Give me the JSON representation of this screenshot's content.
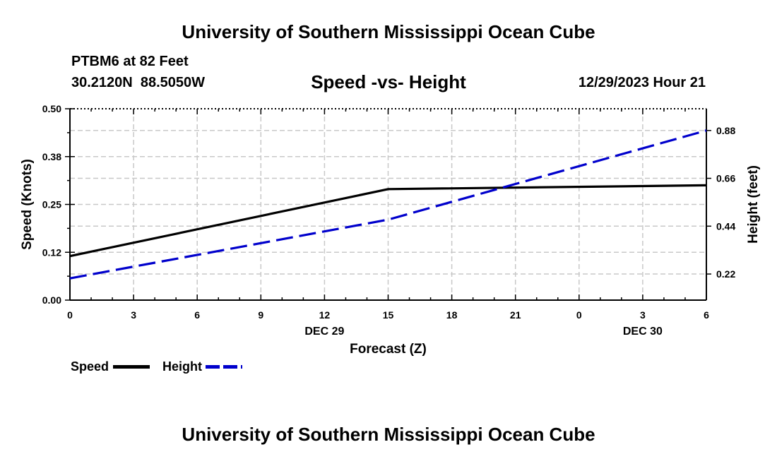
{
  "header": {
    "title": "University of Southern Mississippi Ocean Cube",
    "station": "PTBM6 at 82 Feet",
    "coords": "30.2120N  88.5050W",
    "plot_title": "Speed -vs- Height",
    "datetime": "12/29/2023 Hour 21"
  },
  "footer": {
    "title": "University of Southern Mississippi Ocean Cube"
  },
  "chart_data": {
    "type": "line",
    "title": "Speed -vs- Height",
    "xlabel": "Forecast (Z)",
    "ylabel": "Speed (Knots)",
    "y2label": "Height (feet)",
    "x_ticks": [
      "0",
      "3",
      "6",
      "9",
      "12",
      "15",
      "18",
      "21",
      "0",
      "3",
      "6"
    ],
    "x_tick_hours": [
      0,
      3,
      6,
      9,
      12,
      15,
      18,
      21,
      24,
      27,
      30
    ],
    "x_range": [
      0,
      30
    ],
    "date_labels": [
      {
        "hour": 12,
        "label": "DEC 29"
      },
      {
        "hour": 27,
        "label": "DEC 30"
      }
    ],
    "ylim": [
      0,
      0.5
    ],
    "y_ticks": [
      "0.00",
      "0.12",
      "0.25",
      "0.38",
      "0.50"
    ],
    "y_tick_values": [
      0,
      0.125,
      0.25,
      0.375,
      0.5
    ],
    "y2lim": [
      0.1,
      0.98
    ],
    "y2_ticks": [
      "0.22",
      "0.44",
      "0.66",
      "0.88"
    ],
    "y2_tick_values": [
      0.22,
      0.44,
      0.66,
      0.88
    ],
    "grid": true,
    "series": [
      {
        "name": "Speed",
        "axis": "left",
        "color": "#000000",
        "style": "solid",
        "x": [
          0,
          15,
          30
        ],
        "values": [
          0.115,
          0.29,
          0.3
        ]
      },
      {
        "name": "Height",
        "axis": "right",
        "color": "#0000cc",
        "style": "dashed",
        "x": [
          0,
          15,
          30
        ],
        "values": [
          0.2,
          0.47,
          0.88
        ]
      }
    ],
    "legend": {
      "placement": "bottom-left",
      "items": [
        {
          "label": "Speed",
          "color": "#000000",
          "style": "solid"
        },
        {
          "label": "Height",
          "color": "#0000cc",
          "style": "dashed"
        }
      ]
    }
  }
}
